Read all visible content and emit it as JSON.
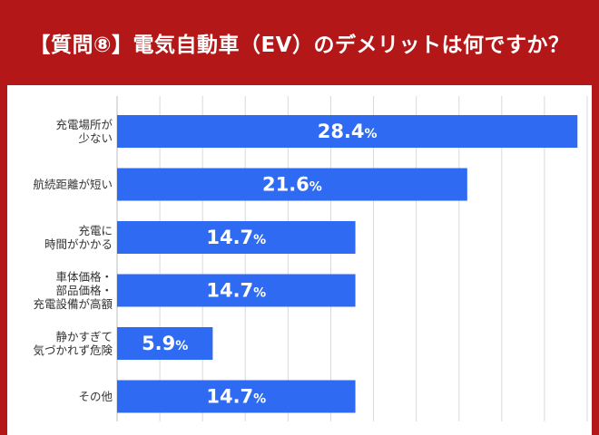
{
  "title": "【質問⑧】電気自動車（EV）のデメリットは何ですか？",
  "colors": {
    "frame": "#b31717",
    "bar": "#2f6bf2",
    "grid": "#d9d9d9",
    "text": "#333333"
  },
  "chart_data": {
    "type": "bar",
    "orientation": "horizontal",
    "title": "【質問⑧】電気自動車（EV）のデメリットは何ですか？",
    "categories": [
      [
        "充電場所が",
        "少ない"
      ],
      [
        "航続距離が短い"
      ],
      [
        "充電に",
        "時間がかかる"
      ],
      [
        "車体価格・",
        "部品価格・",
        "充電設備が高額"
      ],
      [
        "静かすぎて",
        "気づかれず危険"
      ],
      [
        "その他"
      ]
    ],
    "values": [
      28.4,
      21.6,
      14.7,
      14.7,
      5.9,
      14.7
    ],
    "value_labels": [
      "28.4",
      "21.6",
      "14.7",
      "14.7",
      "5.9",
      "14.7"
    ],
    "unit": "%",
    "xlim": [
      0,
      29
    ],
    "gridlines": true
  }
}
